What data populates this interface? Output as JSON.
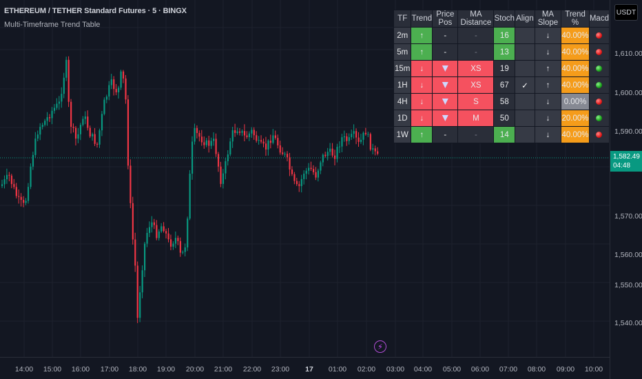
{
  "header": {
    "title": "ETHEREUM / TETHER Standard Futures · 5 · BINGX",
    "indicator": "Multi-Timeframe Trend Table"
  },
  "price_scale": {
    "currency_button": "USDT",
    "ticks": [
      "1,610.00",
      "1,600.00",
      "1,590.00",
      "1,570.00",
      "1,560.00",
      "1,550.00",
      "1,540.00"
    ],
    "current_price": "1,582.49",
    "countdown": "04:48"
  },
  "time_scale": {
    "ticks": [
      "14:00",
      "15:00",
      "16:00",
      "17:00",
      "18:00",
      "19:00",
      "20:00",
      "21:00",
      "22:00",
      "23:00",
      "17",
      "01:00",
      "02:00",
      "03:00",
      "04:00",
      "05:00",
      "06:00",
      "07:00",
      "08:00",
      "09:00",
      "10:00"
    ]
  },
  "table": {
    "headers": [
      "TF",
      "Trend",
      "Price Pos",
      "MA Distance",
      "Stoch",
      "Align",
      "MA Slope",
      "Trend %",
      "Macd"
    ],
    "rows": [
      {
        "tf": "2m",
        "trend": "↑",
        "price_pos": "-",
        "ma_distance": "-",
        "stoch": "16",
        "align": "",
        "ma_slope": "↓",
        "trend_pct": "40.00%",
        "macd": "red"
      },
      {
        "tf": "5m",
        "trend": "↑",
        "price_pos": "-",
        "ma_distance": "-",
        "stoch": "13",
        "align": "",
        "ma_slope": "↓",
        "trend_pct": "40.00%",
        "macd": "red"
      },
      {
        "tf": "15m",
        "trend": "↓",
        "price_pos": "▼",
        "ma_distance": "XS",
        "stoch": "19",
        "align": "",
        "ma_slope": "↑",
        "trend_pct": "40.00%",
        "macd": "green"
      },
      {
        "tf": "1H",
        "trend": "↓",
        "price_pos": "▼",
        "ma_distance": "XS",
        "stoch": "67",
        "align": "✓",
        "ma_slope": "↑",
        "trend_pct": "40.00%",
        "macd": "green"
      },
      {
        "tf": "4H",
        "trend": "↓",
        "price_pos": "▼",
        "ma_distance": "S",
        "stoch": "58",
        "align": "",
        "ma_slope": "↓",
        "trend_pct": "0.00%",
        "macd": "red"
      },
      {
        "tf": "1D",
        "trend": "↓",
        "price_pos": "▼",
        "ma_distance": "M",
        "stoch": "50",
        "align": "",
        "ma_slope": "↓",
        "trend_pct": "20.00%",
        "macd": "green"
      },
      {
        "tf": "1W",
        "trend": "↑",
        "price_pos": "-",
        "ma_distance": "-",
        "stoch": "14",
        "align": "",
        "ma_slope": "↓",
        "trend_pct": "40.00%",
        "macd": "red"
      }
    ]
  },
  "colors": {
    "up": "#089981",
    "down": "#f23645",
    "accent": "#4caf50",
    "orange": "#f59c1a",
    "background": "#131722"
  },
  "icons": {
    "bolt": "lightning-icon"
  }
}
